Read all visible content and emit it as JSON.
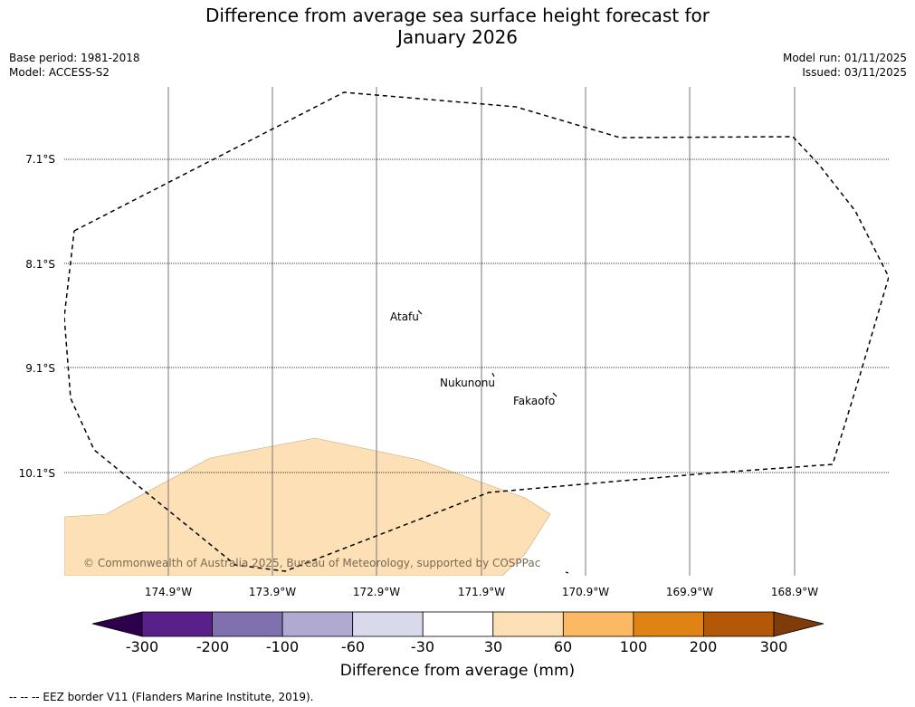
{
  "title_line1": "Difference from average sea surface height forecast for",
  "title_line2": "January 2026",
  "meta": {
    "base_period": "Base period: 1981-2018",
    "model": "Model: ACCESS-S2",
    "model_run": "Model run: 01/11/2025",
    "issued": "Issued: 03/11/2025"
  },
  "latitudes": [
    "7.1°S",
    "8.1°S",
    "9.1°S",
    "10.1°S"
  ],
  "longitudes": [
    "174.9°W",
    "173.9°W",
    "172.9°W",
    "171.9°W",
    "170.9°W",
    "169.9°W",
    "168.9°W"
  ],
  "islands": [
    "Atafu",
    "Nukunonu",
    "Fakaofo"
  ],
  "copyright": "© Commonwealth of Australia 2025, Bureau of Meteorology, supported by COSPPac",
  "colorbar": {
    "title": "Difference from average (mm)",
    "ticks": [
      "-300",
      "-200",
      "-100",
      "-60",
      "-30",
      "30",
      "60",
      "100",
      "200",
      "300"
    ],
    "colors": [
      "#582088",
      "#8071ae",
      "#b0a9d2",
      "#d9d9ec",
      "#ffffff",
      "#fee0b6",
      "#fdb863",
      "#e08214",
      "#b35806"
    ],
    "under_color": "#2d004b",
    "over_color": "#7f3b08"
  },
  "shaded_region_color": "#fee0b6",
  "footer": "--  --  -- EEZ border V11 (Flanders Marine Institute, 2019)."
}
